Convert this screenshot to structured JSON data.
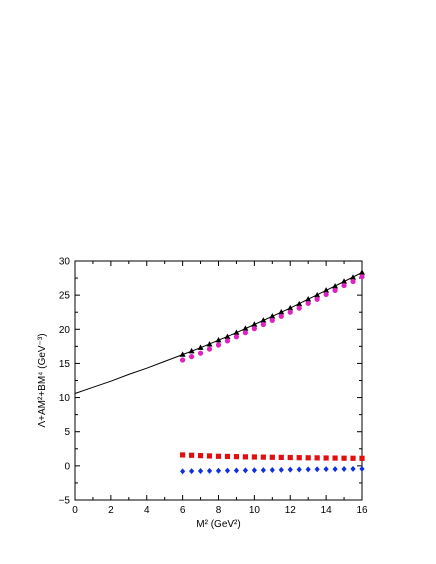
{
  "chart_data": {
    "type": "scatter",
    "title": "",
    "xlabel": "M² (GeV²)",
    "ylabel": "Λ+AM²+BM⁴ (GeV⁻³)",
    "xlim": [
      0,
      16
    ],
    "ylim": [
      -5,
      30
    ],
    "xticks": [
      "0",
      "2",
      "4",
      "6",
      "8",
      "10",
      "12",
      "14",
      "16"
    ],
    "yticks": [
      "−5",
      "0",
      "5",
      "10",
      "15",
      "20",
      "25",
      "30"
    ],
    "grid": false,
    "legend": "none",
    "curve": {
      "marker": "line",
      "color": "#000000",
      "x": [
        0,
        1,
        2,
        3,
        4,
        5,
        6,
        7,
        8,
        9,
        10,
        11,
        12,
        13,
        14,
        15,
        16
      ],
      "y": [
        10.6,
        11.5,
        12.4,
        13.4,
        14.3,
        15.3,
        16.3,
        17.3,
        18.4,
        19.5,
        20.7,
        21.9,
        23.1,
        24.4,
        25.7,
        27.0,
        28.3
      ]
    },
    "series": [
      {
        "marker": "triangle",
        "color": "#000000",
        "x": [
          6.0,
          6.5,
          7.0,
          7.5,
          8.0,
          8.5,
          9.0,
          9.5,
          10.0,
          10.5,
          11.0,
          11.5,
          12.0,
          12.5,
          13.0,
          13.5,
          14.0,
          14.5,
          15.0,
          15.5,
          16.0
        ],
        "y": [
          16.3,
          16.8,
          17.3,
          17.8,
          18.4,
          18.9,
          19.5,
          20.1,
          20.7,
          21.3,
          21.9,
          22.5,
          23.1,
          23.7,
          24.4,
          25.0,
          25.7,
          26.3,
          27.0,
          27.6,
          28.3
        ]
      },
      {
        "marker": "circle",
        "color": "#e020c0",
        "x": [
          6.0,
          6.5,
          7.0,
          7.5,
          8.0,
          8.5,
          9.0,
          9.5,
          10.0,
          10.5,
          11.0,
          11.5,
          12.0,
          12.5,
          13.0,
          13.5,
          14.0,
          14.5,
          15.0,
          15.5,
          16.0
        ],
        "y": [
          15.5,
          16.0,
          16.5,
          17.1,
          17.7,
          18.3,
          18.9,
          19.5,
          20.1,
          20.7,
          21.3,
          21.9,
          22.5,
          23.1,
          23.8,
          24.4,
          25.1,
          25.7,
          26.4,
          27.0,
          27.7
        ]
      },
      {
        "marker": "square",
        "color": "#e01010",
        "x": [
          6.0,
          6.5,
          7.0,
          7.5,
          8.0,
          8.5,
          9.0,
          9.5,
          10.0,
          10.5,
          11.0,
          11.5,
          12.0,
          12.5,
          13.0,
          13.5,
          14.0,
          14.5,
          15.0,
          15.5,
          16.0
        ],
        "y": [
          1.6,
          1.55,
          1.5,
          1.45,
          1.4,
          1.38,
          1.35,
          1.32,
          1.3,
          1.28,
          1.26,
          1.24,
          1.22,
          1.2,
          1.18,
          1.17,
          1.15,
          1.14,
          1.12,
          1.11,
          1.1
        ]
      },
      {
        "marker": "diamond",
        "color": "#1030e0",
        "x": [
          6.0,
          6.5,
          7.0,
          7.5,
          8.0,
          8.5,
          9.0,
          9.5,
          10.0,
          10.5,
          11.0,
          11.5,
          12.0,
          12.5,
          13.0,
          13.5,
          14.0,
          14.5,
          15.0,
          15.5,
          16.0
        ],
        "y": [
          -0.8,
          -0.78,
          -0.76,
          -0.74,
          -0.72,
          -0.7,
          -0.68,
          -0.66,
          -0.64,
          -0.62,
          -0.6,
          -0.58,
          -0.56,
          -0.54,
          -0.52,
          -0.5,
          -0.48,
          -0.47,
          -0.46,
          -0.45,
          -0.44
        ]
      }
    ]
  }
}
